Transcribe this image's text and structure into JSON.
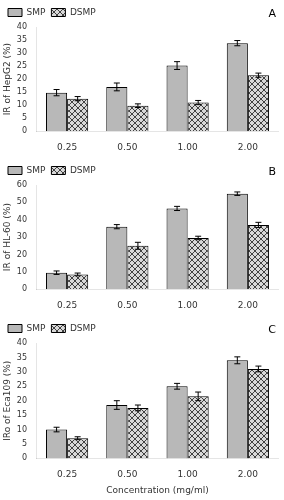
{
  "chart_data": [
    {
      "type": "bar",
      "categories": [
        "0.25",
        "0.50",
        "1.00",
        "2.00"
      ],
      "series": [
        {
          "name": "SMP",
          "color": "#b8b8b8",
          "values": [
            14.8,
            17.0,
            25.2,
            33.8
          ],
          "errors": [
            1.2,
            1.5,
            1.5,
            1.0
          ]
        },
        {
          "name": "DSMP",
          "color": "#d8d8d8",
          "values": [
            12.5,
            9.8,
            11.0,
            21.5
          ],
          "errors": [
            0.8,
            0.7,
            0.8,
            0.8
          ]
        }
      ],
      "ylabel": "IR of HepG2 (%)",
      "ylim": [
        0,
        40
      ],
      "yticks": [
        0,
        5,
        10,
        15,
        20,
        25,
        30,
        35,
        40
      ],
      "annotations": [
        "A"
      ],
      "legend": "upper left",
      "grid": false
    },
    {
      "type": "bar",
      "categories": [
        "0.25",
        "0.50",
        "1.00",
        "2.00"
      ],
      "series": [
        {
          "name": "SMP",
          "color": "#b8b8b8",
          "values": [
            9.5,
            36.0,
            46.5,
            55.0
          ],
          "errors": [
            1.0,
            1.2,
            1.2,
            1.0
          ]
        },
        {
          "name": "DSMP",
          "color": "#d8d8d8",
          "values": [
            8.5,
            25.0,
            29.5,
            37.0
          ],
          "errors": [
            0.8,
            2.0,
            1.0,
            1.5
          ]
        }
      ],
      "ylabel": "IR of HL-60 (%)",
      "ylim": [
        0,
        60
      ],
      "yticks": [
        0,
        10,
        20,
        30,
        40,
        50,
        60
      ],
      "annotations": [
        "B"
      ],
      "legend": "upper left",
      "grid": false
    },
    {
      "type": "bar",
      "categories": [
        "0.25",
        "0.50",
        "1.00",
        "2.00"
      ],
      "series": [
        {
          "name": "SMP",
          "color": "#b8b8b8",
          "values": [
            10.0,
            18.5,
            25.0,
            34.0
          ],
          "errors": [
            0.8,
            1.5,
            1.0,
            1.2
          ]
        },
        {
          "name": "DSMP",
          "color": "#d8d8d8",
          "values": [
            7.0,
            17.5,
            21.5,
            31.0
          ],
          "errors": [
            0.5,
            1.0,
            1.5,
            1.0
          ]
        }
      ],
      "xlabel": "Concentration (mg/ml)",
      "ylabel": "IRo of Eca109 (%)",
      "ylim": [
        0,
        40
      ],
      "yticks": [
        0,
        5,
        10,
        15,
        20,
        25,
        30,
        35,
        40
      ],
      "annotations": [
        "C"
      ],
      "legend": "upper left",
      "grid": false
    }
  ]
}
